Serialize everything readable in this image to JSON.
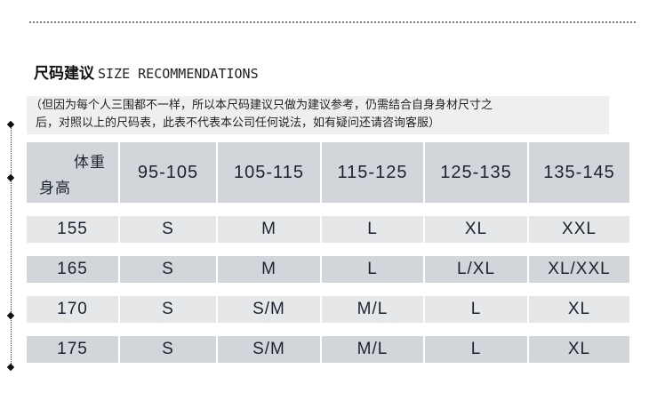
{
  "title": {
    "cn": "尺码建议",
    "en": "SIZE RECOMMENDATIONS"
  },
  "note": {
    "line1": "（但因为每个人三围都不一样，所以本尺码建议只做为建议参考，仍需结合自身身材尺寸之",
    "line2": "后，对照以上的尺码表，此表不代表本公司任何说法，如有疑问还请咨询客服）"
  },
  "table": {
    "corner_weight": "体重",
    "corner_height": "身高",
    "weights": [
      "95-105",
      "105-115",
      "115-125",
      "125-135",
      "135-145"
    ],
    "rows": [
      {
        "height": "155",
        "sizes": [
          "S",
          "M",
          "L",
          "XL",
          "XXL"
        ]
      },
      {
        "height": "165",
        "sizes": [
          "S",
          "M",
          "L",
          "L/XL",
          "XL/XXL"
        ]
      },
      {
        "height": "170",
        "sizes": [
          "S",
          "S/M",
          "M/L",
          "L",
          "XL"
        ]
      },
      {
        "height": "175",
        "sizes": [
          "S",
          "S/M",
          "M/L",
          "L",
          "XL"
        ]
      }
    ]
  },
  "colors": {
    "header_bg": "#d2d5d9",
    "row_light": "#e6e7e9",
    "row_dark": "#d2d5d9",
    "text": "#1a2430"
  }
}
